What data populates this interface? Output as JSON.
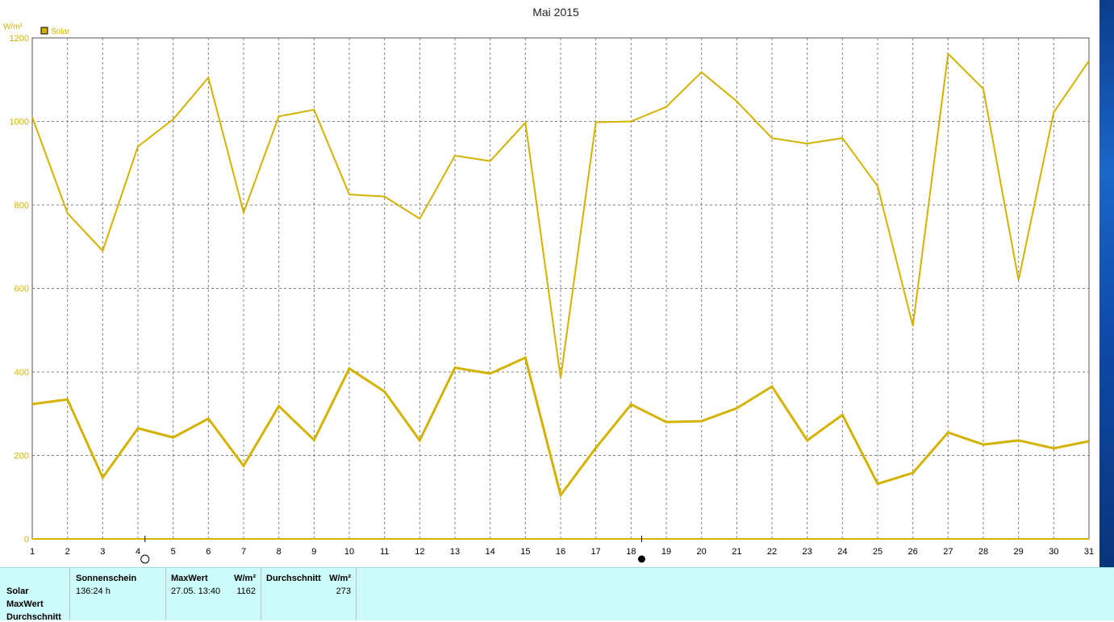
{
  "chart_data": {
    "type": "line",
    "title": "Mai 2015",
    "ylabel": "W/m²",
    "legend": {
      "label": "Solar",
      "color": "#d4b200",
      "position": "top-left"
    },
    "x": [
      1,
      2,
      3,
      4,
      5,
      6,
      7,
      8,
      9,
      10,
      11,
      12,
      13,
      14,
      15,
      16,
      17,
      18,
      19,
      20,
      21,
      22,
      23,
      24,
      25,
      26,
      27,
      28,
      29,
      30,
      31
    ],
    "xlim": [
      1,
      31
    ],
    "ylim": [
      0,
      1200
    ],
    "yticks": [
      0,
      200,
      400,
      600,
      800,
      1000,
      1200
    ],
    "grid": true,
    "series": [
      {
        "name": "MaxWert",
        "color": "#d4b200",
        "values": [
          1010,
          780,
          690,
          940,
          1005,
          1105,
          782,
          1012,
          1028,
          825,
          820,
          767,
          918,
          905,
          997,
          385,
          998,
          1000,
          1035,
          1118,
          1048,
          960,
          947,
          960,
          845,
          510,
          1162,
          1078,
          620,
          1022,
          1145
        ]
      },
      {
        "name": "Durchschnitt",
        "color": "#d4b200",
        "values": [
          323,
          334,
          147,
          265,
          243,
          288,
          175,
          318,
          237,
          408,
          353,
          236,
          410,
          396,
          434,
          105,
          218,
          322,
          280,
          282,
          313,
          365,
          236,
          297,
          132,
          158,
          255,
          226,
          236,
          217,
          234
        ]
      }
    ],
    "moon_phases": [
      {
        "day": 4.2,
        "phase": "full-moon"
      },
      {
        "day": 18.3,
        "phase": "new-moon"
      }
    ]
  },
  "stats": {
    "row_labels": [
      "Solar",
      "MaxWert",
      "Durchschnitt"
    ],
    "sonnenschein": {
      "header": "Sonnenschein",
      "value": "136:24 h"
    },
    "maxwert": {
      "header": "MaxWert",
      "unit": "W/m²",
      "date": "27.05.  13:40",
      "value": "1162"
    },
    "durchschnitt": {
      "header": "Durchschnitt",
      "unit": "W/m²",
      "value": "273"
    }
  }
}
